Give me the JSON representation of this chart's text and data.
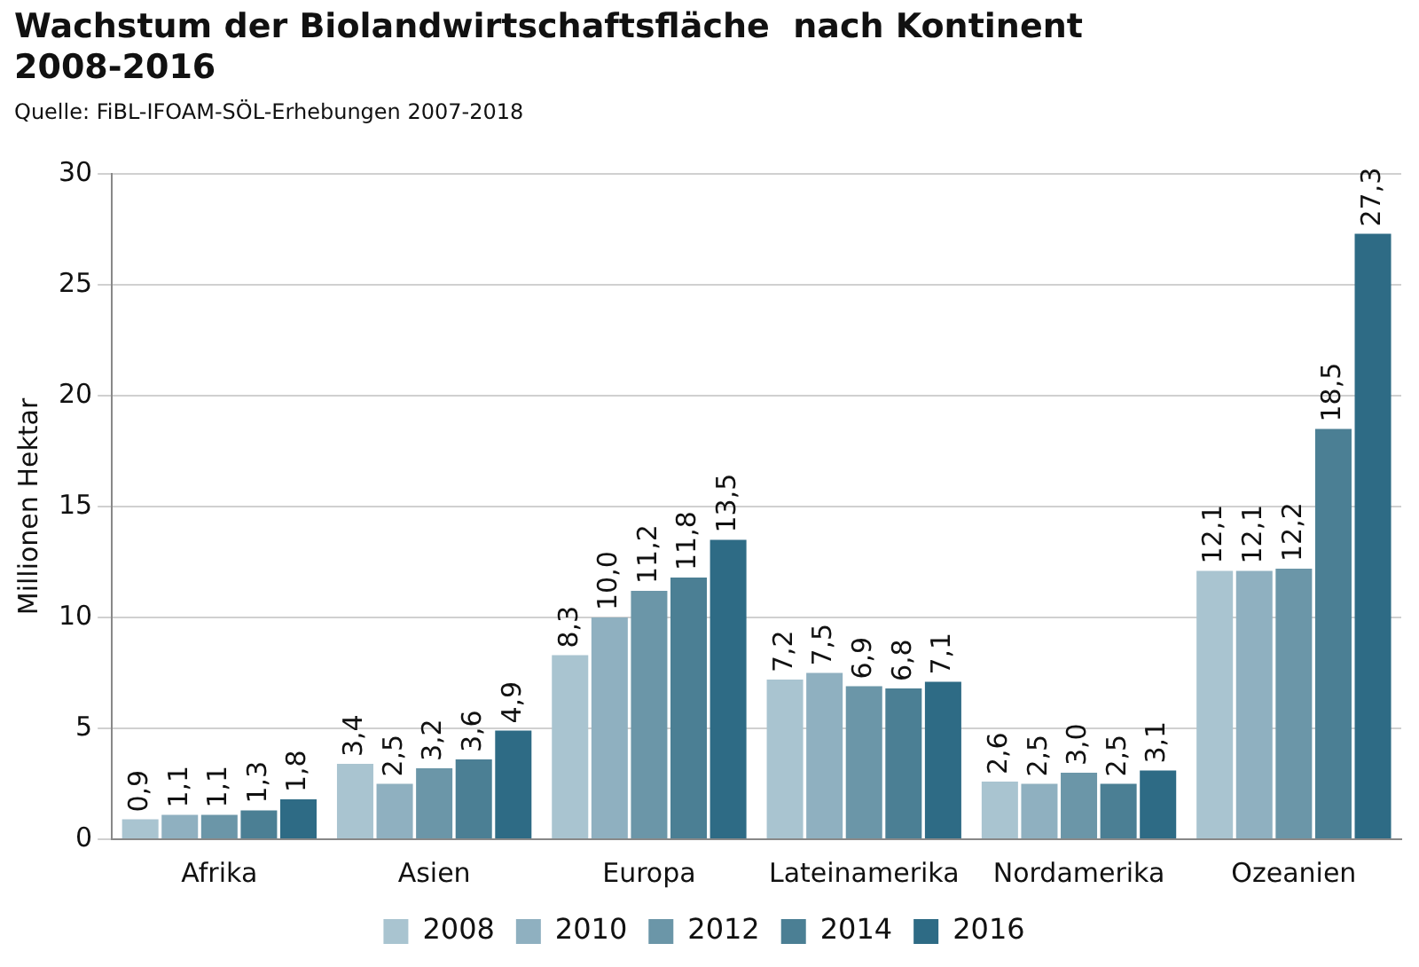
{
  "chart_data": {
    "type": "bar",
    "title": "Wachstum der Biolandwirtschaftsfläche  nach Kontinent\n2008-2016",
    "annotations": [
      "Quelle: FiBL-IFOAM-SÖL-Erhebungen 2007-2018"
    ],
    "ylabel": "Millionen Hektar",
    "categories": [
      "Afrika",
      "Asien",
      "Europa",
      "Lateinamerika",
      "Nordamerika",
      "Ozeanien"
    ],
    "series": [
      {
        "name": "2008",
        "color": "#a9c4d0",
        "values": [
          0.9,
          3.4,
          8.3,
          7.2,
          2.6,
          12.1
        ],
        "value_labels": [
          "0,9",
          "3,4",
          "8,3",
          "7,2",
          "2,6",
          "12,1"
        ]
      },
      {
        "name": "2010",
        "color": "#8fb0c0",
        "values": [
          1.1,
          2.5,
          10.0,
          7.5,
          2.5,
          12.1
        ],
        "value_labels": [
          "1,1",
          "2,5",
          "10,0",
          "7,5",
          "2,5",
          "12,1"
        ]
      },
      {
        "name": "2012",
        "color": "#6b96a8",
        "values": [
          1.1,
          3.2,
          11.2,
          6.9,
          3.0,
          12.2
        ],
        "value_labels": [
          "1,1",
          "3,2",
          "11,2",
          "6,9",
          "3,0",
          "12,2"
        ]
      },
      {
        "name": "2014",
        "color": "#4b7f94",
        "values": [
          1.3,
          3.6,
          11.8,
          6.8,
          2.5,
          18.5
        ],
        "value_labels": [
          "1,3",
          "3,6",
          "11,8",
          "6,8",
          "2,5",
          "18,5"
        ]
      },
      {
        "name": "2016",
        "color": "#2e6b85",
        "values": [
          1.8,
          4.9,
          13.5,
          7.1,
          3.1,
          27.3
        ],
        "value_labels": [
          "1,8",
          "4,9",
          "13,5",
          "7,1",
          "3,1",
          "27,3"
        ]
      }
    ],
    "ylim": [
      0,
      30
    ],
    "yticks": [
      0,
      5,
      10,
      15,
      20,
      25,
      30
    ],
    "grid": "y",
    "legend": "bottom"
  }
}
